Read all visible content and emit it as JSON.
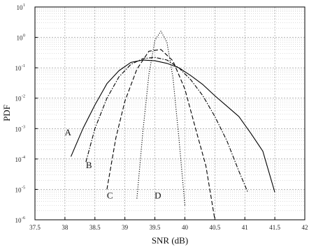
{
  "chart_data": {
    "type": "line",
    "title": "",
    "xlabel": "SNR (dB)",
    "ylabel": "PDF",
    "xlim": [
      37.5,
      42
    ],
    "ylim": [
      1e-06,
      10
    ],
    "y_scale": "log",
    "grid": true,
    "x_ticks": [
      "37.5",
      "38",
      "38.5",
      "39",
      "39.5",
      "40",
      "40.5",
      "41",
      "41.5",
      "42"
    ],
    "y_ticks": [
      {
        "base": "10",
        "exp": "1"
      },
      {
        "base": "10",
        "exp": "0"
      },
      {
        "base": "10",
        "exp": "-1"
      },
      {
        "base": "10",
        "exp": "-2"
      },
      {
        "base": "10",
        "exp": "-3"
      },
      {
        "base": "10",
        "exp": "-4"
      },
      {
        "base": "10",
        "exp": "-5"
      },
      {
        "base": "10",
        "exp": "-6"
      }
    ],
    "series": [
      {
        "name": "A",
        "style": "solid",
        "x": [
          38.1,
          38.3,
          38.5,
          38.7,
          38.9,
          39.1,
          39.3,
          39.5,
          39.7,
          39.9,
          40.1,
          40.3,
          40.5,
          40.7,
          40.9,
          41.1,
          41.3,
          41.5
        ],
        "y": [
          0.00012,
          0.001,
          0.006,
          0.03,
          0.08,
          0.15,
          0.18,
          0.17,
          0.14,
          0.1,
          0.055,
          0.028,
          0.012,
          0.0055,
          0.0025,
          0.0007,
          0.00018,
          8e-06
        ]
      },
      {
        "name": "B",
        "style": "dash-dot",
        "x": [
          38.35,
          38.5,
          38.7,
          38.9,
          39.1,
          39.3,
          39.5,
          39.7,
          39.9,
          40.1,
          40.3,
          40.5,
          40.7,
          40.9,
          41.05
        ],
        "y": [
          8e-05,
          0.001,
          0.01,
          0.05,
          0.13,
          0.2,
          0.22,
          0.18,
          0.1,
          0.04,
          0.012,
          0.0025,
          0.0004,
          4e-05,
          8e-06
        ]
      },
      {
        "name": "C",
        "style": "dashed",
        "x": [
          38.7,
          38.85,
          39.0,
          39.2,
          39.4,
          39.6,
          39.8,
          40.0,
          40.2,
          40.35,
          40.5
        ],
        "y": [
          1e-05,
          0.0005,
          0.008,
          0.09,
          0.35,
          0.4,
          0.17,
          0.02,
          0.0007,
          6e-05,
          1e-06
        ]
      },
      {
        "name": "D",
        "style": "dotted",
        "x": [
          39.2,
          39.3,
          39.4,
          39.5,
          39.6,
          39.7,
          39.8,
          39.9,
          40.0
        ],
        "y": [
          5e-06,
          0.0008,
          0.06,
          0.8,
          1.6,
          0.7,
          0.05,
          0.0005,
          3e-06
        ]
      }
    ],
    "annotations": [
      {
        "text": "A",
        "x": 38.05,
        "y": 0.0006
      },
      {
        "text": "B",
        "x": 38.4,
        "y": 5e-05
      },
      {
        "text": "C",
        "x": 38.75,
        "y": 5e-06
      },
      {
        "text": "D",
        "x": 39.55,
        "y": 5e-06
      }
    ]
  }
}
